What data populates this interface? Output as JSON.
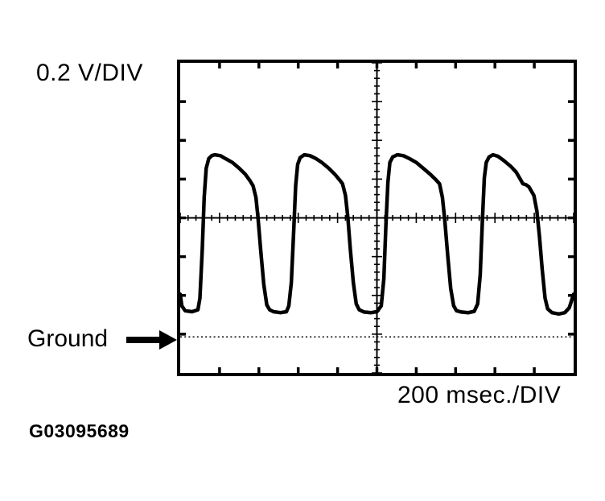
{
  "page": {
    "background": "#ffffff",
    "ink_color": "#000000"
  },
  "figure_id": "G03095689",
  "chart_data": {
    "type": "line",
    "instrument": "oscilloscope",
    "x_axis": {
      "label": "200 msec./DIV",
      "msec_per_division": 200,
      "divisions": 10,
      "range_msec": [
        0,
        2000
      ]
    },
    "y_axis": {
      "label": "0.2 V/DIV",
      "volts_per_division": 0.2,
      "divisions": 8
    },
    "ground_reference": {
      "label": "Ground",
      "divisions_above_bottom": 0.93,
      "line_style": "dotted"
    },
    "graticule": {
      "minor_ticks_per_division": 5,
      "style": "center-crosshair-with-edge-ticks",
      "grid": "off"
    },
    "signal_readings": {
      "peak_volts_above_ground": 0.94,
      "trough_volts_above_ground": 0.12,
      "approx_period_msec": 470,
      "cycles_visible": 4
    },
    "series": [
      {
        "name": "sensor voltage trace",
        "unit_x": "msec",
        "unit_y": "volts above ground",
        "points": [
          [
            0,
            0.22
          ],
          [
            8,
            0.16
          ],
          [
            25,
            0.135
          ],
          [
            60,
            0.13
          ],
          [
            90,
            0.14
          ],
          [
            100,
            0.2
          ],
          [
            112,
            0.45
          ],
          [
            122,
            0.72
          ],
          [
            132,
            0.87
          ],
          [
            145,
            0.92
          ],
          [
            160,
            0.935
          ],
          [
            175,
            0.94
          ],
          [
            205,
            0.935
          ],
          [
            230,
            0.92
          ],
          [
            265,
            0.9
          ],
          [
            300,
            0.87
          ],
          [
            330,
            0.84
          ],
          [
            355,
            0.805
          ],
          [
            370,
            0.78
          ],
          [
            385,
            0.72
          ],
          [
            395,
            0.62
          ],
          [
            410,
            0.44
          ],
          [
            425,
            0.27
          ],
          [
            440,
            0.165
          ],
          [
            455,
            0.14
          ],
          [
            475,
            0.13
          ],
          [
            510,
            0.125
          ],
          [
            540,
            0.13
          ],
          [
            552,
            0.16
          ],
          [
            565,
            0.28
          ],
          [
            577,
            0.55
          ],
          [
            587,
            0.78
          ],
          [
            597,
            0.89
          ],
          [
            610,
            0.925
          ],
          [
            631,
            0.94
          ],
          [
            660,
            0.935
          ],
          [
            690,
            0.92
          ],
          [
            720,
            0.9
          ],
          [
            755,
            0.87
          ],
          [
            785,
            0.84
          ],
          [
            810,
            0.81
          ],
          [
            825,
            0.79
          ],
          [
            840,
            0.73
          ],
          [
            852,
            0.62
          ],
          [
            865,
            0.45
          ],
          [
            880,
            0.28
          ],
          [
            895,
            0.17
          ],
          [
            910,
            0.14
          ],
          [
            935,
            0.128
          ],
          [
            970,
            0.125
          ],
          [
            1000,
            0.13
          ],
          [
            1022,
            0.16
          ],
          [
            1035,
            0.3
          ],
          [
            1046,
            0.58
          ],
          [
            1056,
            0.8
          ],
          [
            1066,
            0.9
          ],
          [
            1080,
            0.928
          ],
          [
            1104,
            0.94
          ],
          [
            1135,
            0.935
          ],
          [
            1165,
            0.92
          ],
          [
            1200,
            0.9
          ],
          [
            1235,
            0.87
          ],
          [
            1270,
            0.84
          ],
          [
            1300,
            0.81
          ],
          [
            1318,
            0.79
          ],
          [
            1333,
            0.72
          ],
          [
            1345,
            0.6
          ],
          [
            1360,
            0.42
          ],
          [
            1375,
            0.25
          ],
          [
            1390,
            0.16
          ],
          [
            1405,
            0.135
          ],
          [
            1430,
            0.128
          ],
          [
            1465,
            0.125
          ],
          [
            1495,
            0.132
          ],
          [
            1512,
            0.17
          ],
          [
            1525,
            0.32
          ],
          [
            1536,
            0.6
          ],
          [
            1546,
            0.82
          ],
          [
            1556,
            0.9
          ],
          [
            1570,
            0.928
          ],
          [
            1590,
            0.94
          ],
          [
            1615,
            0.932
          ],
          [
            1645,
            0.91
          ],
          [
            1680,
            0.88
          ],
          [
            1708,
            0.85
          ],
          [
            1728,
            0.815
          ],
          [
            1742,
            0.79
          ],
          [
            1758,
            0.785
          ],
          [
            1772,
            0.775
          ],
          [
            1798,
            0.73
          ],
          [
            1813,
            0.65
          ],
          [
            1826,
            0.52
          ],
          [
            1840,
            0.35
          ],
          [
            1855,
            0.2
          ],
          [
            1868,
            0.145
          ],
          [
            1890,
            0.125
          ],
          [
            1925,
            0.118
          ],
          [
            1955,
            0.125
          ],
          [
            1978,
            0.15
          ],
          [
            2000,
            0.22
          ]
        ]
      }
    ]
  }
}
